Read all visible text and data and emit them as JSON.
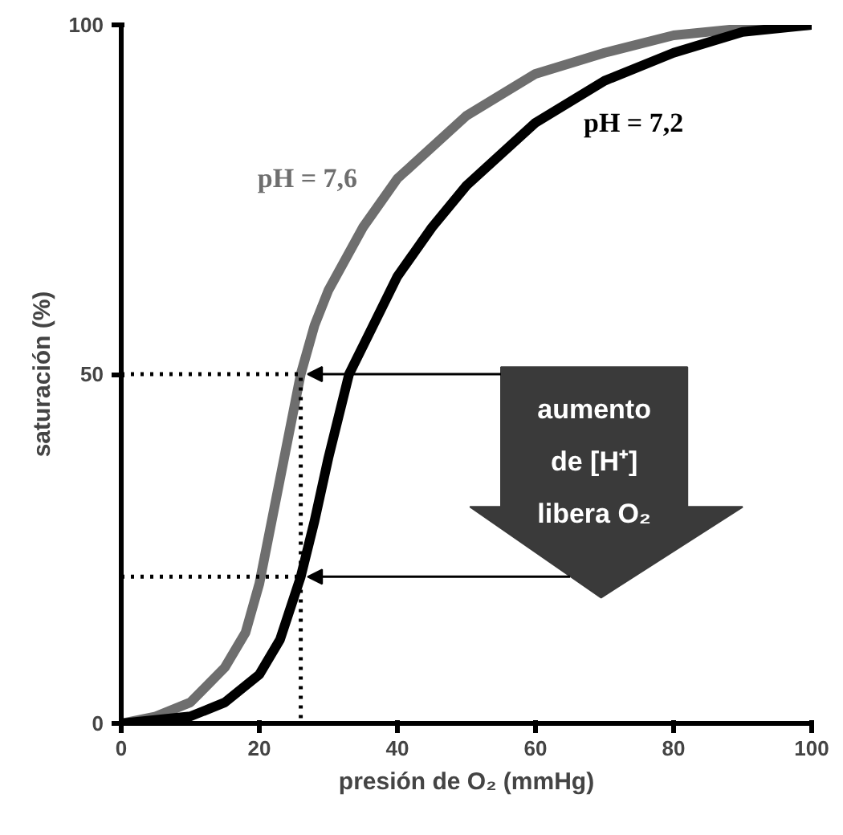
{
  "chart_data": {
    "type": "line",
    "xlabel": "presión de O₂ (mmHg)",
    "ylabel": "saturación (%)",
    "xlim": [
      0,
      100
    ],
    "ylim": [
      0,
      100
    ],
    "xticks": [
      0,
      20,
      40,
      60,
      80,
      100
    ],
    "yticks": [
      0,
      50,
      100
    ],
    "grid": false,
    "annotations": [
      "aumento de [H⁺] libera O₂"
    ],
    "series": [
      {
        "name": "pH = 7,6",
        "color": "#6e6e6e",
        "x": [
          0,
          5,
          10,
          15,
          18,
          20,
          22,
          24,
          26,
          28,
          30,
          35,
          40,
          50,
          60,
          70,
          80,
          90,
          100
        ],
        "values": [
          0,
          1,
          3,
          8,
          13,
          20,
          30,
          40,
          50,
          57,
          62,
          71,
          78,
          87,
          93,
          96,
          98.5,
          99.5,
          100
        ]
      },
      {
        "name": "pH = 7,2",
        "color": "#000000",
        "x": [
          0,
          10,
          15,
          20,
          23,
          26,
          28,
          30,
          33,
          36,
          40,
          45,
          50,
          60,
          70,
          80,
          90,
          100
        ],
        "values": [
          0,
          1,
          3,
          7,
          12,
          21,
          29,
          38,
          50,
          56,
          64,
          71,
          77,
          86,
          92,
          96,
          99,
          100
        ]
      },
      {
        "color": "#000000",
        "line_style": "dotted",
        "x": [
          0,
          26,
          26
        ],
        "values": [
          50,
          50,
          0
        ]
      },
      {
        "color": "#000000",
        "line_style": "dotted",
        "x": [
          0,
          26
        ],
        "values": [
          21,
          21
        ]
      }
    ]
  }
}
